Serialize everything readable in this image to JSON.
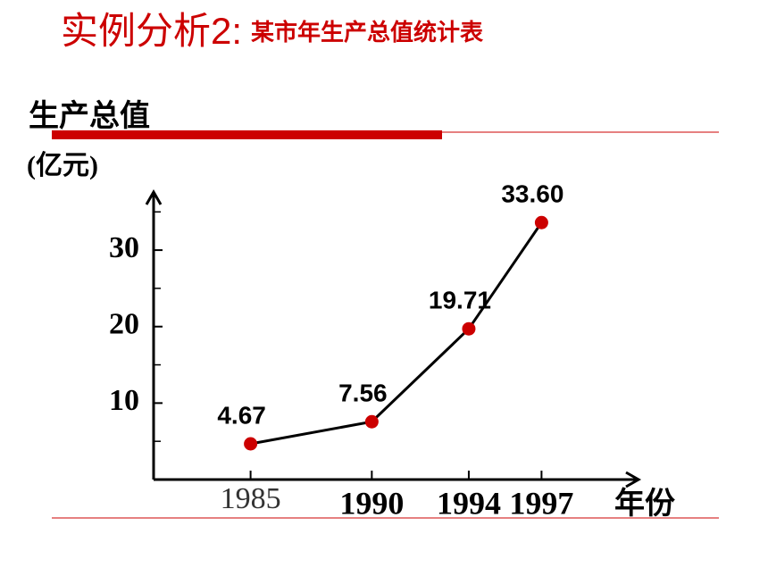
{
  "chart_data": {
    "type": "line",
    "title": "实例分析2:",
    "subtitle": "某市年生产总值统计表",
    "y_label": "生产总值",
    "y_unit": "(亿元)",
    "x_label": "年份",
    "x": [
      1985,
      1990,
      1994,
      1997
    ],
    "series": [
      {
        "values": [
          4.67,
          7.56,
          19.71,
          33.6
        ],
        "value_labels": [
          "4.67",
          "7.56",
          "19.71",
          "33.60"
        ],
        "color": "#000000",
        "marker_color": "#cc0000"
      }
    ],
    "xlim": [
      1981,
      2001
    ],
    "xticks": [
      1985,
      1990,
      1994,
      1997
    ],
    "ylim": [
      0,
      37.6
    ],
    "yticks": [
      10,
      20,
      30
    ],
    "minor_yticks": [
      5,
      15,
      25,
      35
    ]
  }
}
